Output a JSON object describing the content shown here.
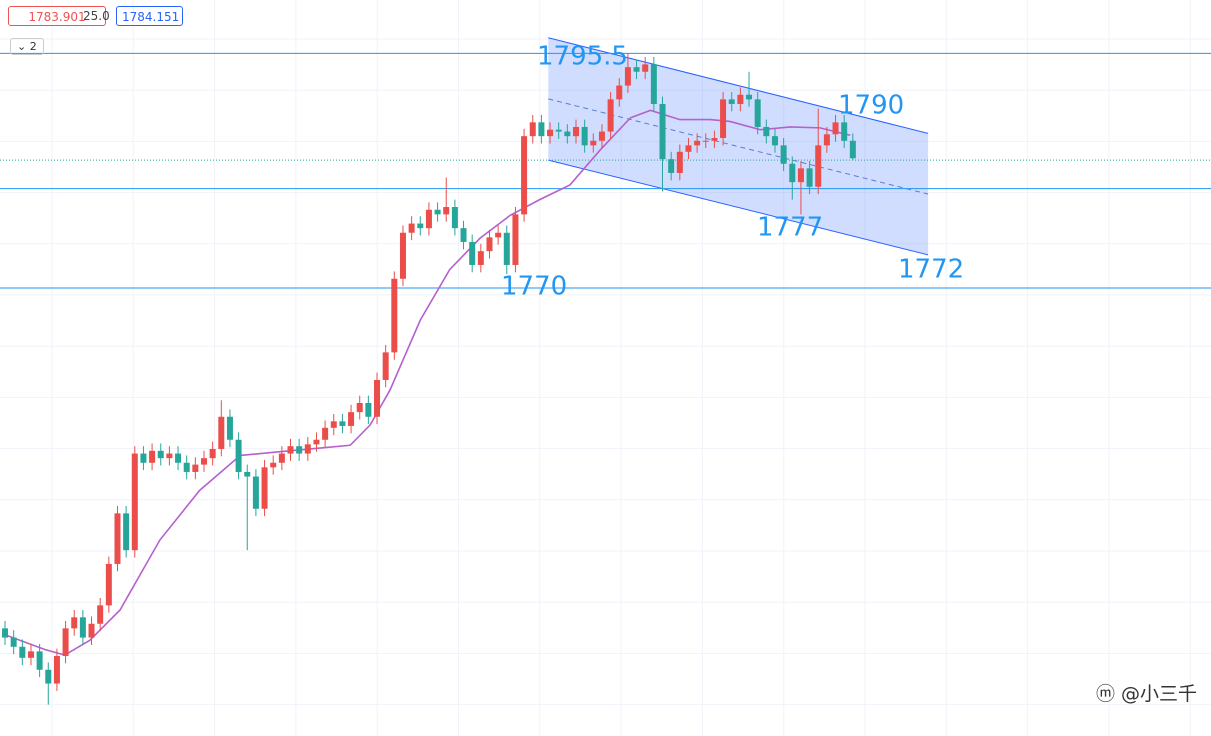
{
  "header": {
    "bid": 1783.901,
    "spread": "25.0",
    "ask": 1784.151,
    "layers": 2
  },
  "watermark": "@小三千",
  "chart_data": {
    "type": "candlestick",
    "xlim": [
      -0.58,
      139.4
    ],
    "ylim": [
      1721.3,
      1801.3
    ],
    "up_color": "#eb4d4b",
    "down_color": "#26a69a",
    "open": [
      1733.0,
      1732.0,
      1731.0,
      1729.8,
      1730.5,
      1728.5,
      1727.0,
      1730.0,
      1733.0,
      1734.2,
      1732.0,
      1733.5,
      1735.5,
      1740.0,
      1745.5,
      1741.5,
      1752.0,
      1751.0,
      1752.3,
      1751.5,
      1752.0,
      1751.0,
      1750.0,
      1750.8,
      1751.5,
      1752.5,
      1756.0,
      1753.5,
      1750.0,
      1749.5,
      1746.0,
      1750.5,
      1751.0,
      1752.0,
      1752.8,
      1752.0,
      1753.0,
      1753.5,
      1754.8,
      1755.5,
      1755.0,
      1756.5,
      1757.5,
      1756.0,
      1760.0,
      1763.0,
      1771.0,
      1776.0,
      1777.0,
      1776.5,
      1778.5,
      1778.0,
      1778.8,
      1776.5,
      1775.0,
      1772.5,
      1774.0,
      1775.5,
      1776.0,
      1772.5,
      1778.0,
      1786.5,
      1788.0,
      1786.5,
      1787.2,
      1787.0,
      1786.5,
      1787.5,
      1785.5,
      1786.0,
      1787.0,
      1790.5,
      1792.0,
      1794.0,
      1793.5,
      1794.3,
      1790.0,
      1784.0,
      1782.5,
      1784.8,
      1785.5,
      1786.0,
      1786.0,
      1786.3,
      1790.5,
      1790.0,
      1791.0,
      1790.5,
      1787.5,
      1786.5,
      1785.5,
      1783.5,
      1781.5,
      1783.0,
      1781.0,
      1785.5,
      1786.7,
      1788.0,
      1786.0
    ],
    "high": [
      1733.8,
      1732.8,
      1731.8,
      1731.3,
      1731.3,
      1729.3,
      1730.8,
      1733.8,
      1735.0,
      1735.0,
      1734.3,
      1736.3,
      1740.8,
      1746.3,
      1746.3,
      1752.8,
      1752.8,
      1753.1,
      1753.1,
      1752.8,
      1752.8,
      1751.8,
      1751.6,
      1752.3,
      1753.3,
      1757.8,
      1756.8,
      1754.3,
      1750.8,
      1750.3,
      1751.3,
      1751.8,
      1752.8,
      1753.6,
      1753.6,
      1753.8,
      1754.3,
      1755.6,
      1756.3,
      1756.3,
      1757.3,
      1758.3,
      1758.3,
      1760.8,
      1763.8,
      1771.8,
      1776.8,
      1777.8,
      1777.8,
      1779.3,
      1779.3,
      1782.0,
      1779.6,
      1777.3,
      1775.8,
      1774.8,
      1776.3,
      1776.8,
      1776.8,
      1778.8,
      1787.3,
      1788.8,
      1788.8,
      1788.0,
      1788.0,
      1787.8,
      1788.3,
      1788.3,
      1786.8,
      1787.8,
      1791.3,
      1792.8,
      1795.5,
      1794.8,
      1795.1,
      1795.1,
      1790.8,
      1784.8,
      1785.6,
      1786.3,
      1786.8,
      1786.8,
      1787.1,
      1791.3,
      1791.3,
      1791.8,
      1793.5,
      1791.3,
      1788.3,
      1787.3,
      1786.3,
      1784.3,
      1783.8,
      1783.8,
      1789.5,
      1787.5,
      1788.8,
      1788.8,
      1786.8
    ],
    "low": [
      1731.2,
      1730.2,
      1729.0,
      1729.0,
      1727.7,
      1724.7,
      1726.2,
      1729.2,
      1732.2,
      1731.2,
      1731.2,
      1732.7,
      1734.7,
      1739.2,
      1740.7,
      1740.7,
      1750.2,
      1750.2,
      1750.7,
      1750.7,
      1750.2,
      1749.2,
      1749.2,
      1750.0,
      1750.7,
      1751.7,
      1752.7,
      1749.2,
      1741.5,
      1745.2,
      1745.2,
      1749.7,
      1750.2,
      1751.2,
      1751.2,
      1751.2,
      1752.2,
      1752.7,
      1754.0,
      1754.2,
      1754.2,
      1755.7,
      1755.2,
      1755.2,
      1759.2,
      1762.2,
      1770.2,
      1775.2,
      1775.7,
      1775.7,
      1777.2,
      1777.2,
      1775.7,
      1774.2,
      1771.7,
      1771.7,
      1773.2,
      1774.7,
      1771.5,
      1771.7,
      1777.2,
      1785.7,
      1785.7,
      1785.7,
      1786.2,
      1785.7,
      1785.7,
      1784.7,
      1784.7,
      1785.2,
      1786.2,
      1789.7,
      1791.2,
      1792.7,
      1792.7,
      1789.2,
      1780.5,
      1781.7,
      1781.7,
      1784.0,
      1784.7,
      1785.2,
      1785.2,
      1785.5,
      1789.2,
      1789.2,
      1789.7,
      1786.7,
      1785.7,
      1784.7,
      1782.7,
      1779.6,
      1778.0,
      1780.2,
      1780.2,
      1784.7,
      1785.9,
      1785.2,
      1783.9
    ],
    "close": [
      1732.0,
      1731.0,
      1729.8,
      1730.5,
      1728.5,
      1727.0,
      1730.0,
      1733.0,
      1734.2,
      1732.0,
      1733.5,
      1735.5,
      1740.0,
      1745.5,
      1741.5,
      1752.0,
      1751.0,
      1752.3,
      1751.5,
      1752.0,
      1751.0,
      1750.0,
      1750.8,
      1751.5,
      1752.5,
      1756.0,
      1753.5,
      1750.0,
      1749.5,
      1746.0,
      1750.5,
      1751.0,
      1752.0,
      1752.8,
      1752.0,
      1753.0,
      1753.5,
      1754.8,
      1755.5,
      1755.0,
      1756.5,
      1757.5,
      1756.0,
      1760.0,
      1763.0,
      1771.0,
      1776.0,
      1777.0,
      1776.5,
      1778.5,
      1778.0,
      1778.8,
      1776.5,
      1775.0,
      1772.5,
      1774.0,
      1775.5,
      1776.0,
      1772.5,
      1778.0,
      1786.5,
      1788.0,
      1786.5,
      1787.2,
      1787.0,
      1786.5,
      1787.5,
      1785.5,
      1786.0,
      1787.0,
      1790.5,
      1792.0,
      1794.0,
      1793.5,
      1794.3,
      1790.0,
      1784.0,
      1782.5,
      1784.8,
      1785.5,
      1786.0,
      1786.0,
      1786.3,
      1790.5,
      1790.0,
      1791.0,
      1790.5,
      1787.5,
      1786.5,
      1785.5,
      1783.5,
      1781.5,
      1783.0,
      1781.0,
      1785.5,
      1786.7,
      1788.0,
      1786.0,
      1784.1
    ],
    "ma": {
      "color": "#b660cd",
      "x": [
        0,
        4.6,
        6.9,
        9.8,
        13.3,
        17.9,
        22.5,
        27.2,
        31.8,
        36.4,
        39.9,
        42.2,
        44.5,
        48,
        51.4,
        54.9,
        58.4,
        61.8,
        65.3,
        68.8,
        72.3,
        74.6,
        78,
        81.5,
        83.8,
        87.3,
        90.8,
        94.2,
        97.7
      ],
      "values": [
        1732.3,
        1730.7,
        1730.1,
        1731.7,
        1735.0,
        1742.6,
        1748.0,
        1751.8,
        1752.2,
        1752.6,
        1752.9,
        1755.1,
        1758.9,
        1766.5,
        1772.0,
        1775.4,
        1777.9,
        1779.6,
        1781.2,
        1785.0,
        1788.5,
        1789.3,
        1788.3,
        1788.3,
        1788.1,
        1787.2,
        1787.5,
        1787.4,
        1786.6
      ]
    },
    "hlines": [
      1795.5,
      1780.8,
      1770
    ],
    "channel": {
      "x": [
        62.8,
        106.7
      ],
      "upper": [
        1797.2,
        1786.8
      ],
      "lower": [
        1783.9,
        1773.6
      ]
    },
    "annotations": [
      1795.5,
      1790,
      1777,
      1770,
      1772
    ]
  }
}
